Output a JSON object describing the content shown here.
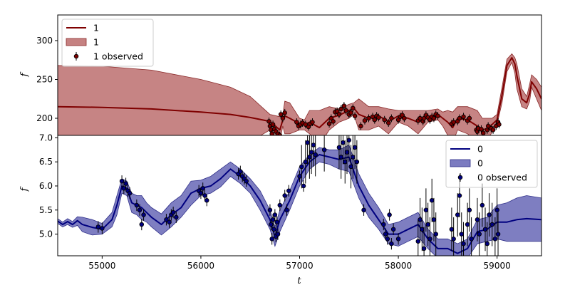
{
  "chart_data": [
    {
      "type": "line",
      "panel": "top",
      "xlabel": "",
      "ylabel": "f",
      "xlim": [
        54550,
        59450
      ],
      "ylim": [
        178,
        333
      ],
      "yticks": [
        200,
        250,
        300
      ],
      "legend": {
        "placement": "top-left",
        "entries": [
          {
            "label": "1",
            "kind": "line"
          },
          {
            "label": "1",
            "kind": "band"
          },
          {
            "label": "1 observed",
            "kind": "errorbar"
          }
        ]
      },
      "colors": {
        "line": "#7f0000",
        "band": "#b66262",
        "band_edge": "#8a2a2a",
        "points": "#7f0000"
      },
      "series": [
        {
          "name": "1",
          "kind": "line",
          "x": [
            54550,
            55000,
            55500,
            56000,
            56300,
            56500,
            56700,
            56800,
            56830,
            56850,
            56900,
            57000,
            57050,
            57100,
            57200,
            57300,
            57400,
            57500,
            57550,
            57600,
            57700,
            57800,
            57900,
            58000,
            58100,
            58200,
            58300,
            58400,
            58450,
            58500,
            58550,
            58600,
            58700,
            58800,
            58850,
            58900,
            58950,
            59000,
            59050,
            59100,
            59150,
            59180,
            59200,
            59250,
            59300,
            59330,
            59350,
            59400,
            59450
          ],
          "y": [
            215,
            214,
            212,
            208,
            205,
            201,
            196,
            185,
            198,
            203,
            200,
            193,
            192,
            195,
            188,
            200,
            204,
            210,
            213,
            205,
            200,
            203,
            196,
            203,
            200,
            195,
            202,
            205,
            200,
            195,
            188,
            200,
            198,
            190,
            185,
            187,
            192,
            198,
            230,
            268,
            278,
            270,
            255,
            225,
            220,
            232,
            247,
            238,
            225
          ]
        },
        {
          "name": "1",
          "kind": "band",
          "x": [
            54550,
            55000,
            55500,
            56000,
            56300,
            56500,
            56700,
            56800,
            56830,
            56850,
            56900,
            57000,
            57050,
            57100,
            57200,
            57300,
            57400,
            57500,
            57550,
            57600,
            57700,
            57800,
            57900,
            58000,
            58100,
            58200,
            58300,
            58400,
            58450,
            58500,
            58550,
            58600,
            58700,
            58800,
            58850,
            58900,
            58950,
            59000,
            59050,
            59100,
            59150,
            59180,
            59200,
            59250,
            59300,
            59330,
            59350,
            59400,
            59450
          ],
          "lower": [
            160,
            160,
            160,
            160,
            165,
            170,
            185,
            170,
            190,
            180,
            180,
            185,
            185,
            180,
            165,
            185,
            195,
            200,
            205,
            185,
            185,
            190,
            180,
            195,
            190,
            180,
            195,
            198,
            190,
            178,
            168,
            185,
            180,
            170,
            165,
            172,
            182,
            192,
            220,
            260,
            272,
            258,
            238,
            215,
            212,
            222,
            240,
            225,
            210
          ],
          "upper": [
            268,
            267,
            262,
            250,
            240,
            228,
            205,
            202,
            205,
            222,
            220,
            200,
            198,
            210,
            210,
            215,
            212,
            218,
            220,
            225,
            215,
            215,
            212,
            210,
            210,
            210,
            210,
            212,
            208,
            210,
            208,
            215,
            215,
            210,
            200,
            200,
            200,
            205,
            240,
            276,
            283,
            278,
            270,
            238,
            228,
            244,
            256,
            250,
            240
          ]
        },
        {
          "name": "1 observed",
          "kind": "errorbar",
          "x": [
            56690,
            56700,
            56710,
            56720,
            56730,
            56745,
            56760,
            56780,
            56800,
            56810,
            56830,
            56850,
            56970,
            56990,
            57010,
            57030,
            57060,
            57090,
            57110,
            57130,
            57300,
            57320,
            57340,
            57360,
            57380,
            57400,
            57420,
            57450,
            57470,
            57500,
            57520,
            57540,
            57560,
            57620,
            57660,
            57700,
            57740,
            57760,
            57780,
            57800,
            57860,
            57900,
            57930,
            58000,
            58020,
            58040,
            58060,
            58200,
            58220,
            58250,
            58260,
            58280,
            58300,
            58320,
            58340,
            58360,
            58380,
            58400,
            58540,
            58560,
            58600,
            58620,
            58660,
            58700,
            58720,
            58790,
            58800,
            58810,
            58840,
            58860,
            58900,
            58910,
            58940,
            58960,
            58990,
            59010,
            59020
          ],
          "y": [
            196,
            190,
            185,
            180,
            192,
            186,
            183,
            180,
            178,
            205,
            200,
            207,
            195,
            190,
            192,
            194,
            192,
            189,
            193,
            195,
            193,
            200,
            196,
            208,
            209,
            205,
            212,
            216,
            210,
            205,
            207,
            213,
            203,
            190,
            197,
            200,
            202,
            198,
            203,
            201,
            198,
            194,
            200,
            198,
            202,
            204,
            200,
            197,
            200,
            196,
            200,
            204,
            201,
            198,
            202,
            200,
            205,
            203,
            193,
            195,
            196,
            200,
            202,
            197,
            200,
            185,
            183,
            187,
            186,
            181,
            185,
            190,
            187,
            185,
            190,
            195,
            192
          ]
        }
      ]
    },
    {
      "type": "line",
      "panel": "bottom",
      "xlabel": "t",
      "ylabel": "f",
      "xlim": [
        54550,
        59450
      ],
      "ylim": [
        4.55,
        7.05
      ],
      "xticks": [
        55000,
        56000,
        57000,
        58000,
        59000
      ],
      "yticks": [
        5.0,
        5.5,
        6.0,
        6.5,
        7.0
      ],
      "ytick_labels": [
        "5.0",
        "5.5",
        "6.0",
        "6.5",
        "7.0"
      ],
      "legend": {
        "placement": "top-right",
        "entries": [
          {
            "label": "0",
            "kind": "line"
          },
          {
            "label": "0",
            "kind": "band"
          },
          {
            "label": "0 observed",
            "kind": "errorbar"
          }
        ]
      },
      "colors": {
        "line": "#00007f",
        "band": "#5a5ab0",
        "band_edge": "#30308a",
        "points": "#00007f"
      },
      "series": [
        {
          "name": "0",
          "kind": "line",
          "x": [
            54550,
            54600,
            54650,
            54700,
            54750,
            54800,
            54900,
            55000,
            55100,
            55150,
            55200,
            55250,
            55300,
            55350,
            55400,
            55450,
            55500,
            55600,
            55700,
            55800,
            55900,
            56000,
            56100,
            56200,
            56300,
            56400,
            56500,
            56600,
            56700,
            56750,
            56800,
            56900,
            57000,
            57100,
            57200,
            57300,
            57400,
            57500,
            57600,
            57700,
            57800,
            57900,
            58000,
            58100,
            58200,
            58300,
            58400,
            58500,
            58600,
            58700,
            58800,
            58900,
            59000,
            59100,
            59200,
            59300,
            59450
          ],
          "y": [
            5.27,
            5.2,
            5.26,
            5.2,
            5.28,
            5.2,
            5.14,
            5.1,
            5.3,
            5.6,
            6.0,
            5.95,
            5.65,
            5.6,
            5.55,
            5.45,
            5.35,
            5.2,
            5.4,
            5.55,
            5.85,
            5.95,
            6.0,
            6.15,
            6.35,
            6.2,
            6.0,
            5.7,
            5.3,
            4.95,
            5.3,
            5.7,
            6.2,
            6.5,
            6.65,
            6.6,
            6.55,
            6.6,
            6.0,
            5.6,
            5.3,
            5.0,
            5.0,
            5.1,
            5.2,
            4.9,
            4.7,
            4.7,
            4.6,
            4.7,
            5.05,
            5.1,
            5.25,
            5.25,
            5.3,
            5.32,
            5.3
          ]
        },
        {
          "name": "0",
          "kind": "band",
          "x": [
            54550,
            54600,
            54650,
            54700,
            54750,
            54800,
            54900,
            55000,
            55100,
            55150,
            55200,
            55250,
            55300,
            55350,
            55400,
            55450,
            55500,
            55600,
            55700,
            55800,
            55900,
            56000,
            56100,
            56200,
            56300,
            56400,
            56500,
            56600,
            56700,
            56750,
            56800,
            56900,
            57000,
            57100,
            57200,
            57300,
            57400,
            57500,
            57600,
            57700,
            57800,
            57900,
            58000,
            58100,
            58200,
            58300,
            58400,
            58500,
            58600,
            58700,
            58800,
            58900,
            59000,
            59100,
            59200,
            59300,
            59450
          ],
          "lower": [
            5.22,
            5.15,
            5.2,
            5.14,
            5.18,
            5.05,
            4.98,
            5.0,
            5.15,
            5.4,
            5.85,
            5.8,
            5.45,
            5.4,
            5.3,
            5.25,
            5.15,
            4.98,
            5.15,
            5.35,
            5.6,
            5.8,
            5.85,
            5.98,
            6.2,
            6.05,
            5.85,
            5.5,
            5.1,
            4.75,
            5.05,
            5.5,
            6.0,
            6.35,
            6.5,
            6.45,
            6.35,
            6.3,
            5.75,
            5.35,
            5.1,
            4.8,
            4.75,
            4.85,
            4.95,
            4.7,
            4.5,
            4.5,
            4.4,
            4.5,
            4.8,
            4.85,
            4.9,
            4.85,
            4.85,
            4.85,
            4.85
          ],
          "upper": [
            5.32,
            5.25,
            5.32,
            5.26,
            5.36,
            5.35,
            5.3,
            5.22,
            5.45,
            5.8,
            6.15,
            6.1,
            5.85,
            5.8,
            5.8,
            5.65,
            5.55,
            5.42,
            5.65,
            5.8,
            6.1,
            6.12,
            6.2,
            6.35,
            6.5,
            6.35,
            6.15,
            5.9,
            5.5,
            5.15,
            5.5,
            5.9,
            6.4,
            6.65,
            6.8,
            6.75,
            6.75,
            6.85,
            6.25,
            5.85,
            5.55,
            5.2,
            5.25,
            5.35,
            5.45,
            5.1,
            4.9,
            4.9,
            4.8,
            4.9,
            5.3,
            5.35,
            5.6,
            5.65,
            5.75,
            5.8,
            5.75
          ]
        },
        {
          "name": "0 observed",
          "kind": "errorbar",
          "x": [
            54960,
            55000,
            55200,
            55220,
            55240,
            55260,
            55280,
            55350,
            55380,
            55400,
            55420,
            55650,
            55680,
            55700,
            55720,
            55750,
            55980,
            56000,
            56020,
            56040,
            56060,
            56380,
            56400,
            56420,
            56440,
            56460,
            56700,
            56710,
            56720,
            56730,
            56740,
            56750,
            56760,
            56770,
            56780,
            56800,
            56850,
            56870,
            56890,
            57000,
            57020,
            57040,
            57060,
            57080,
            57100,
            57120,
            57140,
            57160,
            57250,
            57400,
            57420,
            57440,
            57460,
            57480,
            57500,
            57520,
            57540,
            57560,
            57580,
            57650,
            57850,
            57870,
            57890,
            57910,
            57930,
            57950,
            58000,
            58200,
            58220,
            58240,
            58260,
            58280,
            58300,
            58320,
            58340,
            58360,
            58380,
            58540,
            58560,
            58600,
            58620,
            58640,
            58660,
            58700,
            58720,
            58740,
            58800,
            58820,
            58850,
            58880,
            58900,
            58920,
            58950,
            58980,
            59000,
            59010
          ],
          "y": [
            5.15,
            5.12,
            6.1,
            5.95,
            6.05,
            5.9,
            5.85,
            5.6,
            5.5,
            5.2,
            5.4,
            5.3,
            5.25,
            5.4,
            5.45,
            5.35,
            5.9,
            5.85,
            5.95,
            5.8,
            5.7,
            6.25,
            6.3,
            6.2,
            6.15,
            6.1,
            5.5,
            5.2,
            4.9,
            5.3,
            5.1,
            5.4,
            4.95,
            5.25,
            5.0,
            5.6,
            5.8,
            5.5,
            5.9,
            6.2,
            6.4,
            6.0,
            6.5,
            6.9,
            6.6,
            6.7,
            6.85,
            6.65,
            6.75,
            6.8,
            6.6,
            6.9,
            6.5,
            6.7,
            6.95,
            6.4,
            6.6,
            6.8,
            6.5,
            5.5,
            5.2,
            5.0,
            4.9,
            5.4,
            4.8,
            5.1,
            4.9,
            4.85,
            5.3,
            5.1,
            4.7,
            5.5,
            5.2,
            4.9,
            5.7,
            5.3,
            5.0,
            5.1,
            4.9,
            5.4,
            5.8,
            5.0,
            4.8,
            5.2,
            5.5,
            4.9,
            5.3,
            5.0,
            5.6,
            5.1,
            4.8,
            5.4,
            5.2,
            4.9,
            5.5,
            5.0
          ]
        }
      ]
    }
  ]
}
